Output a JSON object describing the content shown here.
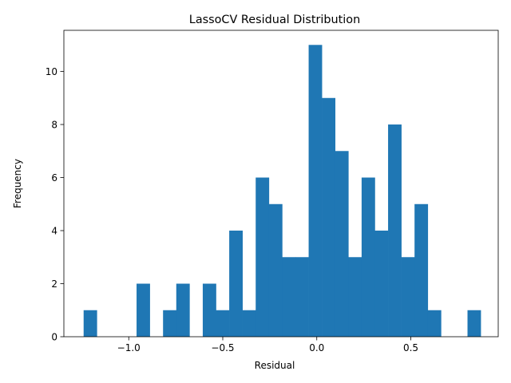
{
  "chart_data": {
    "type": "bar",
    "title": "LassoCV Residual Distribution",
    "xlabel": "Residual",
    "ylabel": "Frequency",
    "bin_start": -1.24,
    "bin_width": 0.0704,
    "values": [
      1,
      0,
      0,
      0,
      2,
      0,
      1,
      2,
      0,
      2,
      1,
      4,
      1,
      6,
      5,
      3,
      3,
      11,
      9,
      7,
      3,
      6,
      4,
      8,
      3,
      5,
      1,
      0,
      0,
      1
    ],
    "xlim": [
      -1.345,
      0.965
    ],
    "ylim": [
      0,
      11.55
    ],
    "xticks": [
      -1.0,
      -0.5,
      0.0,
      0.5
    ],
    "xtick_labels": [
      "−1.0",
      "−0.5",
      "0.0",
      "0.5"
    ],
    "yticks": [
      0,
      2,
      4,
      6,
      8,
      10
    ],
    "ytick_labels": [
      "0",
      "2",
      "4",
      "6",
      "8",
      "10"
    ],
    "bar_color": "#1f77b4",
    "grid": false
  }
}
